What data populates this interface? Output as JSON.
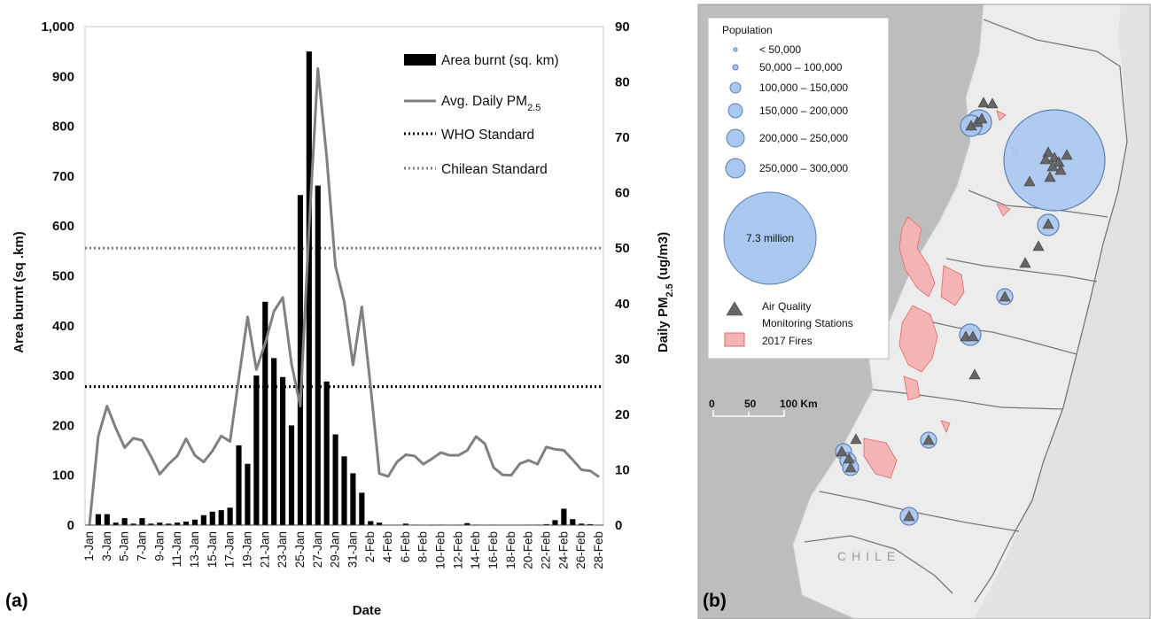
{
  "panel_a_label": "(a)",
  "panel_b_label": "(b)",
  "chart_data": {
    "type": "bar+line",
    "xlabel": "Date",
    "ylabel_left": "Area burnt (sq .km)",
    "ylabel_right_pre": "Daily PM",
    "ylabel_right_sub": "2.5",
    "ylabel_right_post": " (ug/m3)",
    "ylim_left": [
      0,
      1000
    ],
    "ylim_right": [
      0,
      90
    ],
    "y_ticks_left": [
      "0",
      "100",
      "200",
      "300",
      "400",
      "500",
      "600",
      "700",
      "800",
      "900",
      "1,000"
    ],
    "y_ticks_right": [
      "0",
      "10",
      "20",
      "30",
      "40",
      "50",
      "60",
      "70",
      "80",
      "90"
    ],
    "categories": [
      "1-Jan",
      "2-Jan",
      "3-Jan",
      "4-Jan",
      "5-Jan",
      "6-Jan",
      "7-Jan",
      "8-Jan",
      "9-Jan",
      "10-Jan",
      "11-Jan",
      "12-Jan",
      "13-Jan",
      "14-Jan",
      "15-Jan",
      "16-Jan",
      "17-Jan",
      "18-Jan",
      "19-Jan",
      "20-Jan",
      "21-Jan",
      "22-Jan",
      "23-Jan",
      "24-Jan",
      "25-Jan",
      "26-Jan",
      "27-Jan",
      "28-Jan",
      "29-Jan",
      "30-Jan",
      "31-Jan",
      "1-Feb",
      "2-Feb",
      "3-Feb",
      "4-Feb",
      "5-Feb",
      "6-Feb",
      "7-Feb",
      "8-Feb",
      "9-Feb",
      "10-Feb",
      "11-Feb",
      "12-Feb",
      "13-Feb",
      "14-Feb",
      "15-Feb",
      "16-Feb",
      "17-Feb",
      "18-Feb",
      "19-Feb",
      "20-Feb",
      "21-Feb",
      "22-Feb",
      "23-Feb",
      "24-Feb",
      "25-Feb",
      "26-Feb",
      "27-Feb",
      "28-Feb"
    ],
    "x_tick_labels": [
      "1-Jan",
      "3-Jan",
      "5-Jan",
      "7-Jan",
      "9-Jan",
      "11-Jan",
      "13-Jan",
      "15-Jan",
      "17-Jan",
      "19-Jan",
      "21-Jan",
      "23-Jan",
      "25-Jan",
      "27-Jan",
      "29-Jan",
      "31-Jan",
      "2-Feb",
      "4-Feb",
      "6-Feb",
      "8-Feb",
      "10-Feb",
      "12-Feb",
      "14-Feb",
      "16-Feb",
      "18-Feb",
      "20-Feb",
      "22-Feb",
      "24-Feb",
      "26-Feb",
      "28-Feb"
    ],
    "series": [
      {
        "name": "Area burnt (sq. km)",
        "type": "bar",
        "axis": "left",
        "color": "#000000",
        "values": [
          0,
          22,
          22,
          5,
          14,
          3,
          14,
          3,
          5,
          3,
          5,
          7,
          11,
          20,
          27,
          30,
          35,
          160,
          123,
          300,
          448,
          335,
          297,
          200,
          662,
          950,
          681,
          288,
          182,
          138,
          104,
          65,
          8,
          5,
          0,
          0,
          3,
          1,
          0,
          1,
          1,
          0,
          1,
          4,
          1,
          0,
          1,
          0,
          0,
          0,
          1,
          1,
          2,
          10,
          33,
          12,
          3,
          2,
          0
        ]
      },
      {
        "name": "Avg. Daily PM2.5",
        "name_pre": "Avg. Daily PM",
        "name_sub": "2.5",
        "type": "line",
        "axis": "right",
        "color": "#808080",
        "values": [
          0,
          16,
          21.5,
          17.5,
          14,
          15.7,
          15.3,
          12.4,
          9.2,
          11,
          12.5,
          15.6,
          12.6,
          11.4,
          13.4,
          16.1,
          15.1,
          26.5,
          37.6,
          28.1,
          32.8,
          38.6,
          41.1,
          29.1,
          21.5,
          53.7,
          82.4,
          66.5,
          46.8,
          40.3,
          28.9,
          39.4,
          25,
          9.3,
          8.8,
          11.4,
          12.7,
          12.5,
          11,
          12,
          13.1,
          12.6,
          12.6,
          13.5,
          16,
          14.7,
          10.4,
          9.1,
          9,
          11.1,
          11.7,
          11,
          14.1,
          13.7,
          13.5,
          11.8,
          10,
          9.8,
          8.7
        ]
      },
      {
        "name": "WHO Standard",
        "type": "hline",
        "axis": "right",
        "value": 25,
        "color": "#000000",
        "dash": "dotted"
      },
      {
        "name": "Chilean Standard",
        "type": "hline",
        "axis": "right",
        "value": 50,
        "color": "#808080",
        "dash": "dotted"
      }
    ]
  },
  "map": {
    "legend_title": "Population",
    "population_classes": [
      "< 50,000",
      "50,000 – 100,000",
      "100,000 – 150,000",
      "150,000 – 200,000",
      "200,000 – 250,000",
      "250,000 – 300,000"
    ],
    "big_circle_label": "7.3 million",
    "stations_label_line1": "Air Quality",
    "stations_label_line2": "Monitoring Stations",
    "fires_label": "2017 Fires",
    "scale_labels": [
      "0",
      "50",
      "100 Km"
    ],
    "country_label": "CHILE",
    "colors": {
      "population_fill": "#a9c8f0",
      "population_stroke": "#5f7fb5",
      "fire_fill": "#f4b4b4",
      "fire_stroke": "#e06a6a",
      "land": "#ececec",
      "ocean": "#bdbdbd",
      "station": "#666666"
    }
  }
}
